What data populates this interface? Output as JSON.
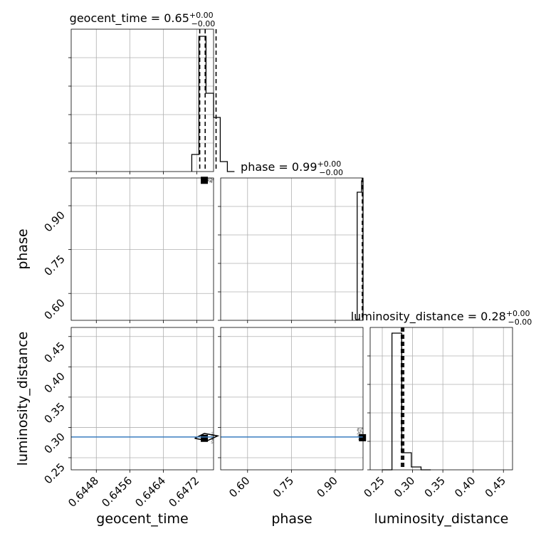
{
  "chart_data": {
    "type": "corner",
    "parameters": [
      {
        "key": "geocent_time",
        "label": "geocent_time",
        "title_prefix": "geocent_time = ",
        "median": "0.65",
        "plus": "+0.00",
        "minus": "−0.00",
        "range": [
          0.6442,
          0.6476
        ],
        "ticks": [
          0.6448,
          0.6456,
          0.6464,
          0.6472
        ],
        "tick_labels": [
          "0.6448",
          "0.6456",
          "0.6464",
          "0.6472"
        ]
      },
      {
        "key": "phase",
        "label": "phase",
        "title_prefix": "phase = ",
        "median": "0.99",
        "plus": "+0.00",
        "minus": "−0.00",
        "range": [
          0.508,
          0.995
        ],
        "ticks": [
          0.6,
          0.75,
          0.9
        ],
        "tick_labels": [
          "0.60",
          "0.75",
          "0.90"
        ]
      },
      {
        "key": "luminosity_distance",
        "label": "luminosity_distance",
        "title_prefix": "luminosity_distance = ",
        "median": "0.28",
        "plus": "+0.00",
        "minus": "−0.00",
        "range": [
          0.23,
          0.465
        ],
        "ticks": [
          0.25,
          0.3,
          0.35,
          0.4,
          0.45
        ],
        "tick_labels": [
          "0.25",
          "0.30",
          "0.35",
          "0.40",
          "0.45"
        ]
      }
    ],
    "histograms": [
      {
        "param": "geocent_time",
        "edges": [
          0.64708,
          0.64725,
          0.64742,
          0.6476,
          0.64776,
          0.64793,
          0.6481
        ],
        "counts": [
          0.12,
          0.95,
          0.55,
          0.38,
          0.07,
          0.0
        ],
        "quantiles": [
          0.64727,
          0.6474,
          0.64766
        ]
      },
      {
        "param": "phase",
        "edges": [
          0.975,
          0.99,
          0.995
        ],
        "counts": [
          0.9,
          0.98
        ],
        "quantiles": [
          0.9925,
          0.9935,
          0.9945
        ]
      },
      {
        "param": "luminosity_distance",
        "edges": [
          0.25,
          0.266,
          0.282,
          0.298,
          0.314,
          0.33
        ],
        "counts": [
          0.0,
          0.96,
          0.12,
          0.02,
          0.0
        ],
        "quantiles": [
          0.2815,
          0.2835,
          0.2855
        ]
      }
    ],
    "truth": {
      "luminosity_distance": 0.2842
    },
    "colors": {
      "truth_line": "#3a7dbf",
      "hist": "#000000",
      "samples": "#555555"
    },
    "grid": true
  }
}
